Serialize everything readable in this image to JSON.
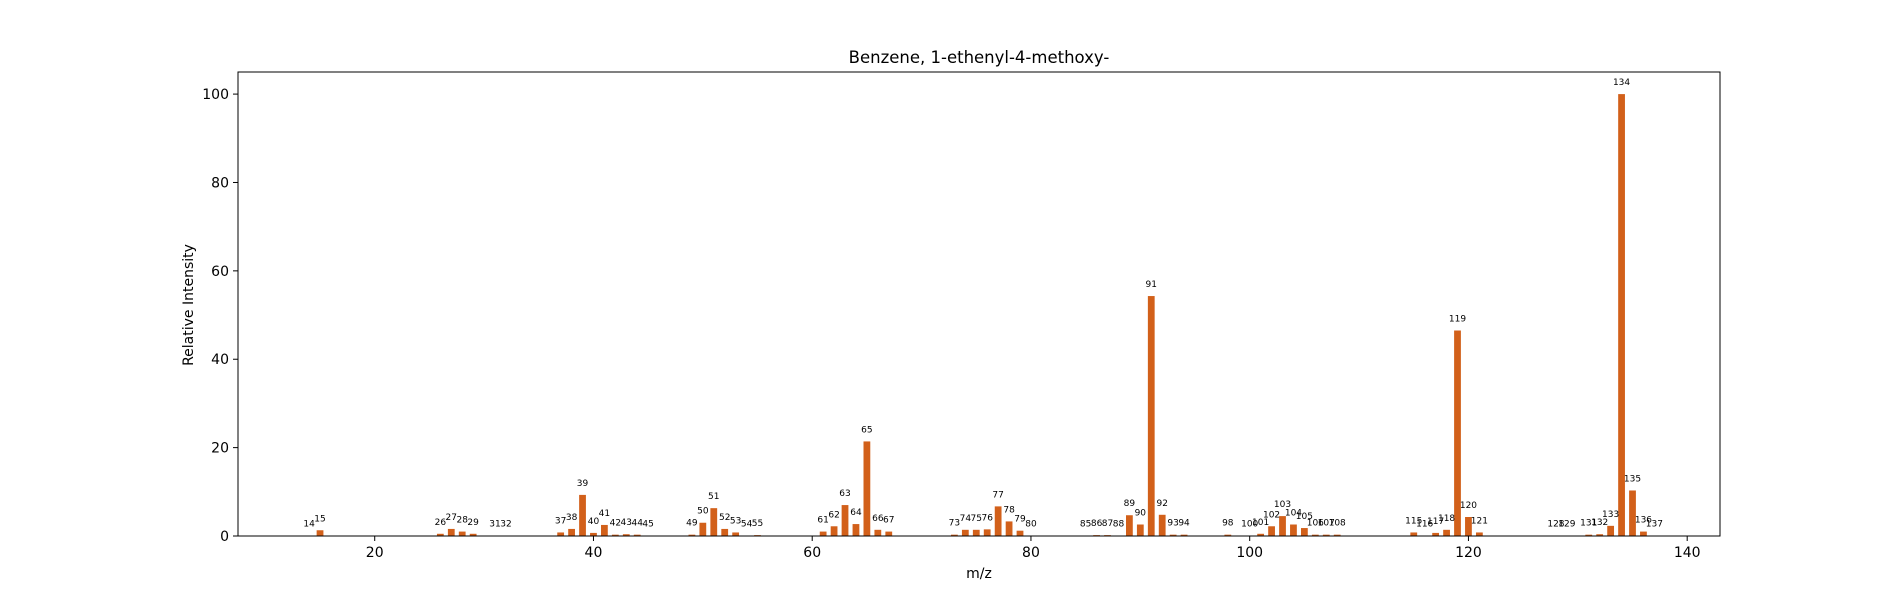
{
  "chart_data": {
    "type": "bar",
    "title": "Benzene, 1-ethenyl-4-methoxy-",
    "xlabel": "m/z",
    "ylabel": "Relative Intensity",
    "xlim": [
      7.5,
      143
    ],
    "ylim": [
      0,
      105
    ],
    "xticks": [
      20,
      40,
      60,
      80,
      100,
      120,
      140
    ],
    "yticks": [
      0,
      20,
      40,
      60,
      80,
      100
    ],
    "grid": false,
    "bar_color": "#d2601a",
    "series": [
      {
        "x": [
          14,
          15,
          26,
          27,
          28,
          29,
          31,
          32,
          37,
          38,
          39,
          40,
          41,
          42,
          43,
          44,
          45,
          49,
          50,
          51,
          52,
          53,
          54,
          55,
          61,
          62,
          63,
          64,
          65,
          66,
          67,
          73,
          74,
          75,
          76,
          77,
          78,
          79,
          80,
          85,
          86,
          87,
          88,
          89,
          90,
          91,
          92,
          93,
          94,
          98,
          100,
          101,
          102,
          103,
          104,
          105,
          106,
          107,
          108,
          115,
          116,
          117,
          118,
          119,
          120,
          121,
          128,
          129,
          131,
          132,
          133,
          134,
          135,
          136,
          137
        ],
        "values": [
          0.1,
          1.3,
          0.5,
          1.6,
          1.0,
          0.5,
          0.1,
          0.1,
          0.8,
          1.6,
          9.3,
          0.7,
          2.5,
          0.3,
          0.4,
          0.3,
          0.1,
          0.3,
          3.0,
          6.3,
          1.6,
          0.8,
          0.1,
          0.2,
          1.0,
          2.2,
          7.0,
          2.7,
          21.4,
          1.4,
          1.0,
          0.3,
          1.4,
          1.4,
          1.5,
          6.7,
          3.3,
          1.2,
          0.1,
          0.1,
          0.2,
          0.2,
          0.1,
          4.7,
          2.6,
          54.3,
          4.8,
          0.3,
          0.3,
          0.3,
          0.1,
          0.5,
          2.2,
          4.5,
          2.6,
          1.8,
          0.3,
          0.3,
          0.3,
          0.8,
          0.1,
          0.7,
          1.4,
          46.5,
          4.3,
          0.8,
          0.1,
          0.1,
          0.3,
          0.4,
          2.3,
          100.0,
          10.3,
          1.0,
          0.1
        ]
      }
    ]
  }
}
